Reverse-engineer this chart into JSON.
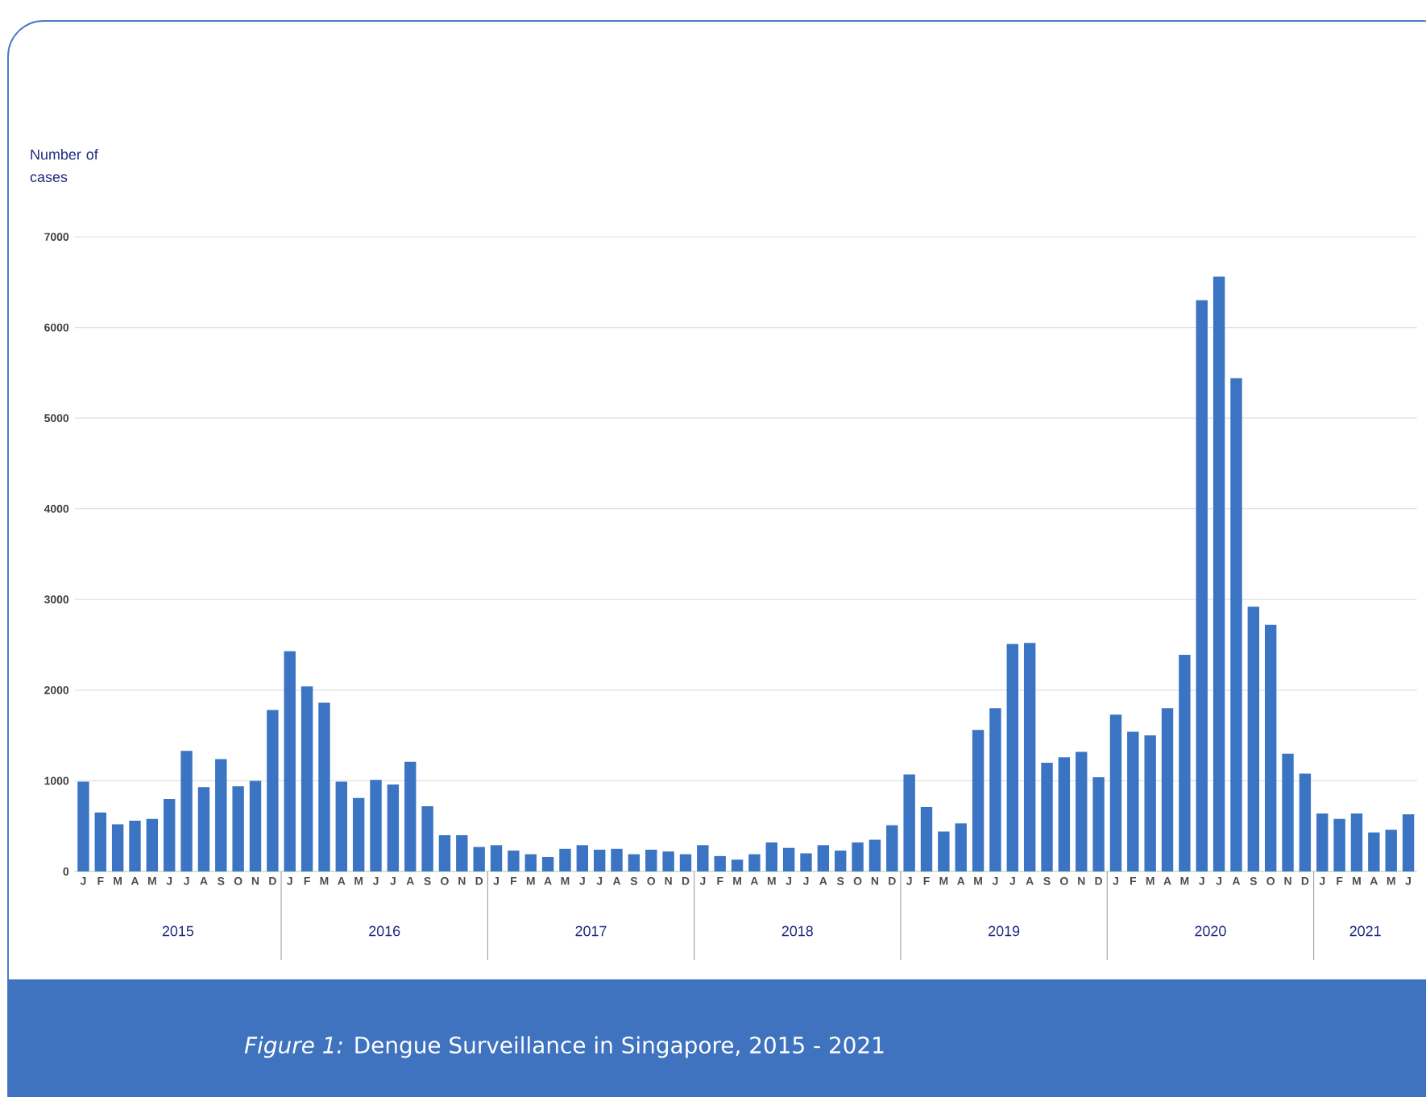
{
  "chart_data": {
    "type": "bar",
    "title": "*Figure 1:* Dengue Surveillance in Singapore, 2015 - 2021",
    "ylabel": "Number of cases",
    "categories": [
      "J",
      "F",
      "M",
      "A",
      "M",
      "J",
      "J",
      "A",
      "S",
      "O",
      "N",
      "D",
      "J",
      "F",
      "M",
      "A",
      "M",
      "J",
      "J",
      "A",
      "S",
      "O",
      "N",
      "D",
      "J",
      "F",
      "M",
      "A",
      "M",
      "J",
      "J",
      "A",
      "S",
      "O",
      "N",
      "D",
      "J",
      "F",
      "M",
      "A",
      "M",
      "J",
      "J",
      "A",
      "S",
      "O",
      "N",
      "D",
      "J",
      "F",
      "M",
      "A",
      "M",
      "J",
      "J",
      "A",
      "S",
      "O",
      "N",
      "D",
      "J",
      "F",
      "M",
      "A",
      "M",
      "J",
      "J",
      "A",
      "S",
      "O",
      "N",
      "D",
      "J",
      "F",
      "M",
      "A",
      "M",
      "J"
    ],
    "values": [
      990,
      650,
      520,
      560,
      580,
      800,
      1330,
      930,
      1240,
      940,
      1000,
      1780,
      2430,
      2040,
      1860,
      990,
      810,
      1010,
      960,
      1210,
      720,
      400,
      400,
      270,
      290,
      230,
      190,
      160,
      250,
      290,
      240,
      250,
      190,
      240,
      220,
      190,
      290,
      170,
      130,
      190,
      320,
      260,
      200,
      290,
      230,
      320,
      350,
      510,
      1070,
      710,
      440,
      530,
      1560,
      1800,
      2510,
      2520,
      1200,
      1260,
      1320,
      1040,
      1730,
      1540,
      1500,
      1800,
      2390,
      6300,
      6560,
      5440,
      2920,
      2720,
      1300,
      1080,
      640,
      580,
      640,
      430,
      460,
      630
    ],
    "color": "#3a74c2",
    "ylim": [
      0,
      7000
    ],
    "yticks": [
      0,
      1000,
      2000,
      3000,
      4000,
      5000,
      6000,
      7000
    ],
    "grid": "y",
    "annotations": [
      "2015",
      "2016",
      "2017",
      "2018",
      "2019",
      "2020",
      "2021"
    ]
  }
}
